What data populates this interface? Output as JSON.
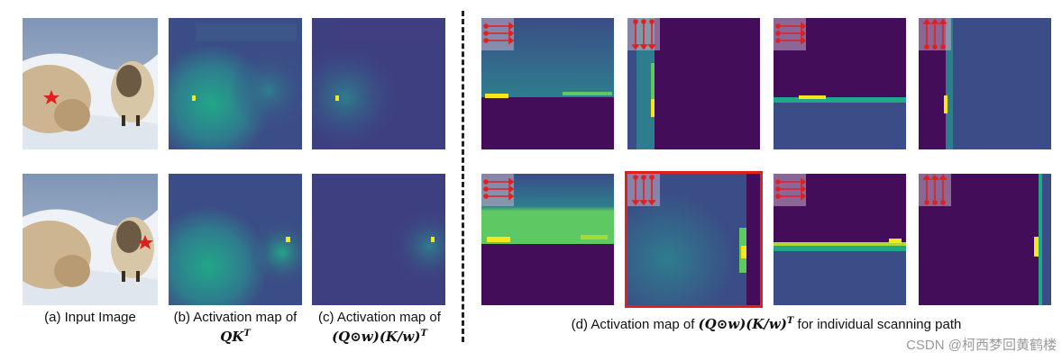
{
  "colors": {
    "dark": "#440d5a",
    "mid_dark": "#3b4d86",
    "mid": "#2e7d8e",
    "teal": "#22a788",
    "green": "#5ec862",
    "yellow": "#f7e51f",
    "arrow": "#e0201e",
    "star": "#e0201e",
    "highlight": "#e0201e"
  },
  "captions": {
    "a": "(a) Input Image",
    "b_line1": "(b) Activation map of",
    "b_line2": "QK",
    "b_sup": "T",
    "c_line1": "(c) Activation map of",
    "c_line2": "(Q⊙w)(K/w)",
    "c_sup": "T",
    "d_prefix": "(d) Activation map of ",
    "d_math": "(Q⊙w)(K/w)",
    "d_sup": "T",
    "d_suffix": " for individual scanning path"
  },
  "watermark": "CSDN @柯西梦回黄鹤楼",
  "icons": {
    "star": "star-icon",
    "scan_horizontal": "scan-horizontal-arrows-icon",
    "scan_vertical": "scan-vertical-arrows-icon"
  }
}
